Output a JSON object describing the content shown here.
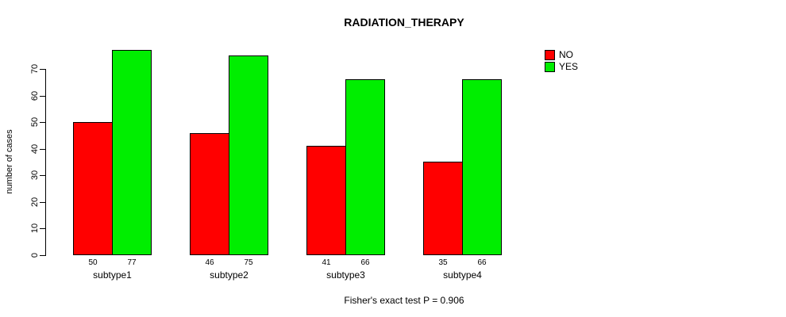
{
  "chart_data": {
    "type": "bar",
    "title": "RADIATION_THERAPY",
    "xlabel": "",
    "ylabel": "number of cases",
    "categories": [
      "subtype1",
      "subtype2",
      "subtype3",
      "subtype4"
    ],
    "series": [
      {
        "name": "NO",
        "color": "#FF0000",
        "values": [
          50,
          46,
          41,
          35
        ]
      },
      {
        "name": "YES",
        "color": "#00EE00",
        "values": [
          77,
          75,
          66,
          66
        ]
      }
    ],
    "bar_value_labels": {
      "NO": [
        "50",
        "46",
        "41",
        "35"
      ],
      "YES": [
        "77",
        "75",
        "66",
        "66"
      ]
    },
    "yticks": [
      0,
      10,
      20,
      30,
      40,
      50,
      60,
      70
    ],
    "ylim": [
      0,
      70
    ],
    "grid": false,
    "legend_position": "topright",
    "annotation": "Fisher's exact test P = 0.906"
  },
  "colors": {
    "axis": "#000000",
    "background": "#FFFFFF",
    "bar_border": "#000000"
  }
}
